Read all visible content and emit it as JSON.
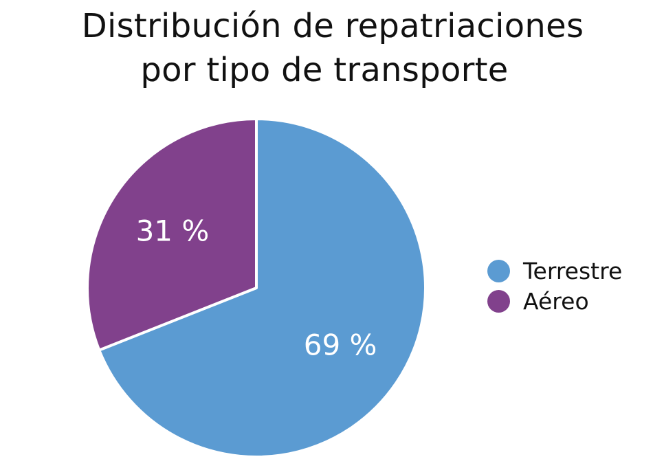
{
  "chart_data": {
    "type": "pie",
    "title": [
      "Distribución de repatriaciones",
      "por tipo de transporte"
    ],
    "categories": [
      "Terrestre",
      "Aéreo"
    ],
    "values": [
      69,
      31
    ],
    "labels": [
      "69 %",
      "31 %"
    ],
    "colors": [
      "#5b9bd2",
      "#81418c"
    ],
    "legend_position": "right"
  }
}
